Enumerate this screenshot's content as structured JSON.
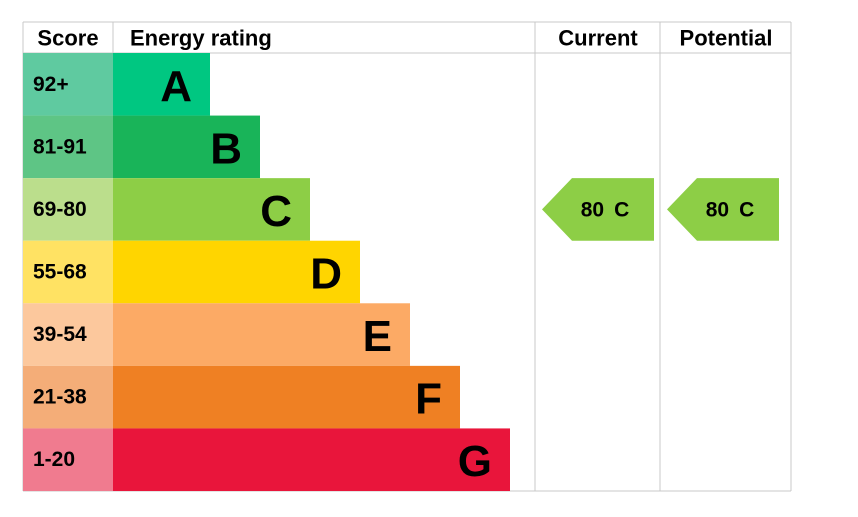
{
  "header": {
    "score": "Score",
    "rating": "Energy rating",
    "current": "Current",
    "potential": "Potential"
  },
  "bands": [
    {
      "score": "92+",
      "letter": "A",
      "score_color": "#5fcaa0",
      "color": "#00c781"
    },
    {
      "score": "81-91",
      "letter": "B",
      "score_color": "#5ec585",
      "color": "#19b459"
    },
    {
      "score": "69-80",
      "letter": "C",
      "score_color": "#bbde8c",
      "color": "#8dce46"
    },
    {
      "score": "55-68",
      "letter": "D",
      "score_color": "#ffe263",
      "color": "#ffd500"
    },
    {
      "score": "39-54",
      "letter": "E",
      "score_color": "#fcc89d",
      "color": "#fcaa65"
    },
    {
      "score": "21-38",
      "letter": "F",
      "score_color": "#f4ad78",
      "color": "#ef8023"
    },
    {
      "score": "1-20",
      "letter": "G",
      "score_color": "#f07b8f",
      "color": "#e9153b"
    }
  ],
  "current": {
    "value": 80,
    "letter": "C",
    "color": "#8dce46"
  },
  "potential": {
    "value": 80,
    "letter": "C",
    "color": "#8dce46"
  }
}
